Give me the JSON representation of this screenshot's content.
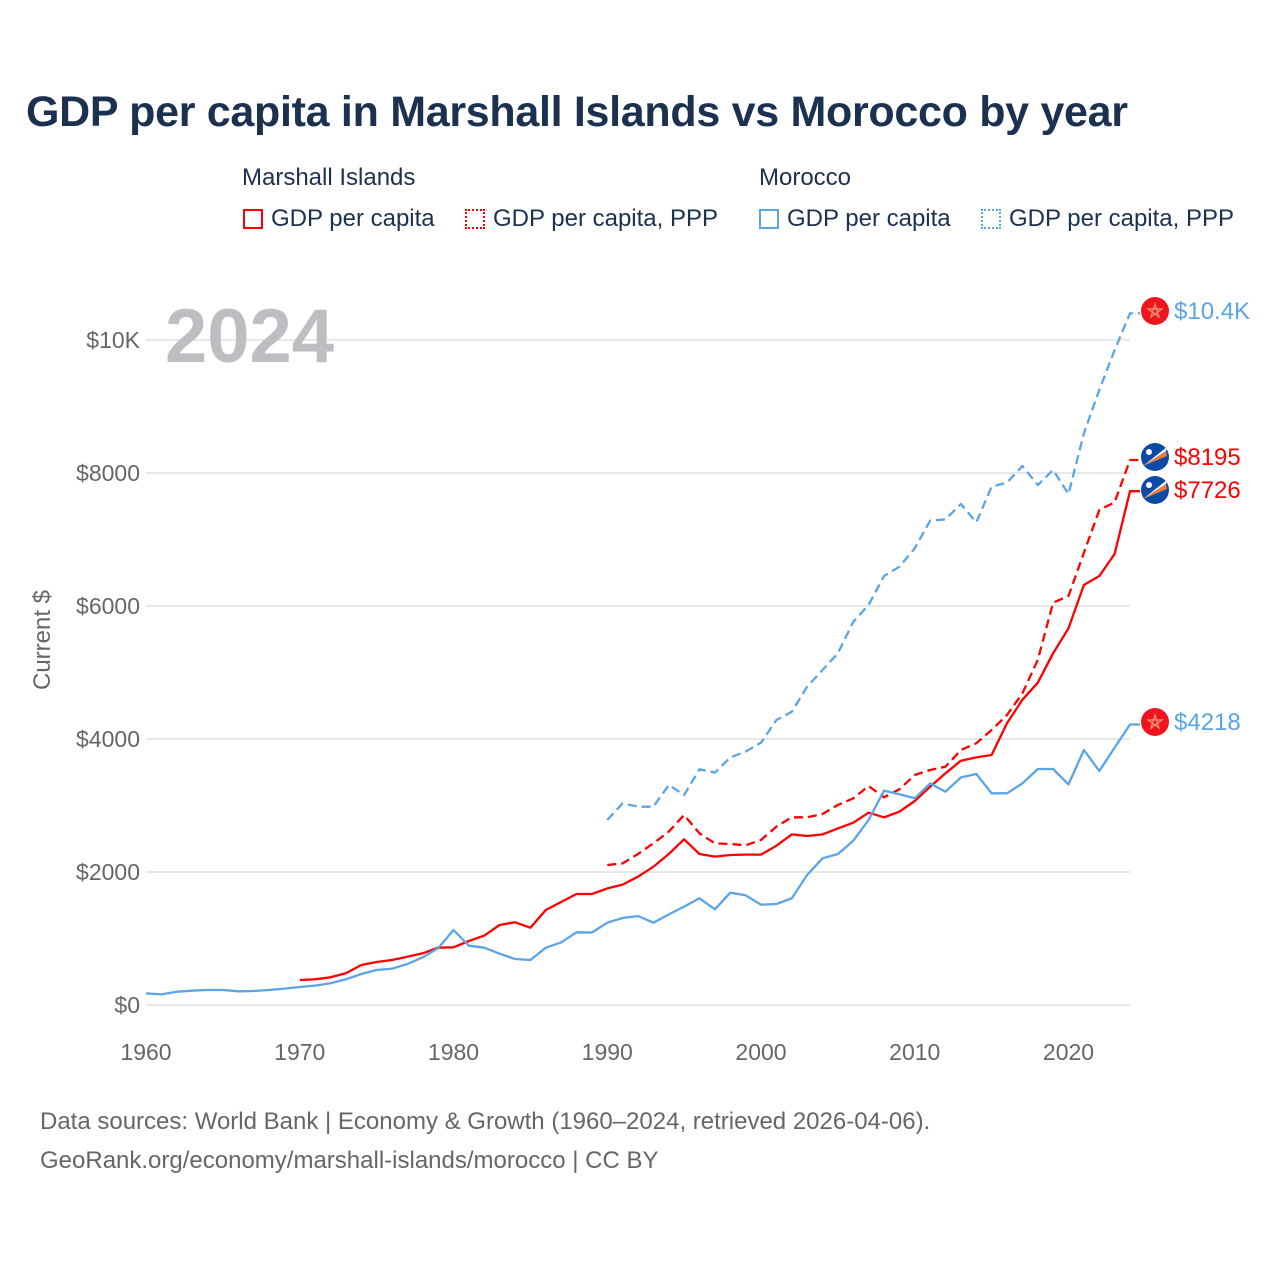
{
  "title": "GDP per capita in Marshall Islands vs Morocco by year",
  "legend": {
    "groups": [
      {
        "name": "Marshall Islands",
        "items": [
          {
            "label": "GDP per capita",
            "color": "#ff0000",
            "style": "solid"
          },
          {
            "label": "GDP per capita, PPP",
            "color": "#ff0000",
            "style": "dotted"
          }
        ]
      },
      {
        "name": "Morocco",
        "items": [
          {
            "label": "GDP per capita",
            "color": "#5ba4e5",
            "style": "solid"
          },
          {
            "label": "GDP per capita, PPP",
            "color": "#5ba4e5",
            "style": "dotted"
          }
        ]
      }
    ]
  },
  "current_year": "2024",
  "footer": {
    "line1": "Data sources: World Bank | Economy & Growth (1960–2024, retrieved 2026-04-06).",
    "line2": "GeoRank.org/economy/marshall-islands/morocco | CC BY"
  },
  "chart_data": {
    "type": "line",
    "title": "GDP per capita in Marshall Islands vs Morocco by year",
    "xlabel": "",
    "ylabel": "Current $",
    "xlim": [
      1960,
      2024
    ],
    "ylim": [
      0,
      10000
    ],
    "x_ticks": [
      {
        "value": 1960,
        "label": "1960"
      },
      {
        "value": 1970,
        "label": "1970"
      },
      {
        "value": 1980,
        "label": "1980"
      },
      {
        "value": 1990,
        "label": "1990"
      },
      {
        "value": 2000,
        "label": "2000"
      },
      {
        "value": 2010,
        "label": "2010"
      },
      {
        "value": 2020,
        "label": "2020"
      }
    ],
    "y_ticks": [
      {
        "value": 0,
        "label": "$0"
      },
      {
        "value": 2000,
        "label": "$2000"
      },
      {
        "value": 4000,
        "label": "$4000"
      },
      {
        "value": 6000,
        "label": "$6000"
      },
      {
        "value": 8000,
        "label": "$8000"
      },
      {
        "value": 10000,
        "label": "$10K"
      }
    ],
    "grid": true,
    "legend_position": "top",
    "series": [
      {
        "name": "Marshall Islands GDP per capita",
        "color": "#ff0000",
        "dash": false,
        "flag": "marshall-islands",
        "end_label": "$7726",
        "start_year": 1970,
        "values": [
          376,
          386,
          416,
          476,
          601,
          646,
          677,
          727,
          777,
          862,
          867,
          962,
          1043,
          1203,
          1243,
          1163,
          1429,
          1549,
          1669,
          1669,
          1754,
          1810,
          1930,
          2080,
          2271,
          2491,
          2271,
          2231,
          2256,
          2261,
          2261,
          2396,
          2566,
          2541,
          2566,
          2656,
          2742,
          2892,
          2822,
          2907,
          3068,
          3283,
          3484,
          3674,
          3724,
          3759,
          4236,
          4590,
          4847,
          5288,
          5664,
          6316,
          6451,
          6782,
          7726
        ]
      },
      {
        "name": "Marshall Islands GDP per capita, PPP",
        "color": "#ff0000",
        "dash": true,
        "flag": "marshall-islands",
        "end_label": "$8195",
        "start_year": 1990,
        "values": [
          2105,
          2130,
          2271,
          2431,
          2607,
          2857,
          2581,
          2431,
          2421,
          2401,
          2481,
          2682,
          2822,
          2822,
          2872,
          3008,
          3108,
          3293,
          3123,
          3243,
          3459,
          3534,
          3584,
          3835,
          3935,
          4135,
          4361,
          4687,
          5190,
          6050,
          6150,
          6800,
          7444,
          7560,
          8195
        ]
      },
      {
        "name": "Morocco GDP per capita",
        "color": "#5ba4e5",
        "dash": false,
        "flag": "morocco",
        "end_label": "$4218",
        "start_year": 1960,
        "values": [
          175,
          160,
          200,
          215,
          226,
          226,
          206,
          211,
          226,
          246,
          271,
          291,
          326,
          386,
          466,
          526,
          546,
          617,
          717,
          852,
          1128,
          892,
          862,
          772,
          692,
          677,
          862,
          942,
          1093,
          1090,
          1238,
          1308,
          1338,
          1238,
          1363,
          1479,
          1604,
          1439,
          1689,
          1649,
          1509,
          1519,
          1604,
          1955,
          2206,
          2271,
          2471,
          2782,
          3223,
          3168,
          3108,
          3333,
          3208,
          3423,
          3474,
          3183,
          3183,
          3333,
          3549,
          3549,
          3318,
          3835,
          3519,
          3870,
          4218
        ]
      },
      {
        "name": "Morocco GDP per capita, PPP",
        "color": "#5ba4e5",
        "dash": true,
        "flag": "morocco",
        "end_label": "$10.4K",
        "start_year": 1990,
        "values": [
          2782,
          3033,
          2982,
          2982,
          3308,
          3158,
          3544,
          3494,
          3724,
          3810,
          3945,
          4286,
          4411,
          4787,
          5038,
          5288,
          5764,
          6015,
          6451,
          6591,
          6867,
          7283,
          7303,
          7534,
          7258,
          7794,
          7855,
          8105,
          7820,
          8045,
          7684,
          8597,
          9248,
          9850,
          10400
        ]
      }
    ]
  }
}
